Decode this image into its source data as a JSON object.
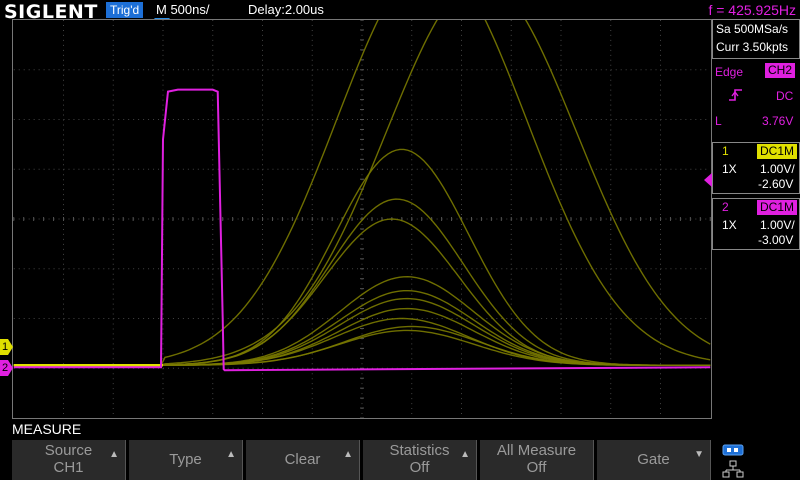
{
  "header": {
    "logo": "SIGLENT",
    "trig_status": "Trig'd",
    "timebase": "M 500ns/",
    "delay": "Delay:2.00us",
    "frequency": "f = 425.925Hz"
  },
  "acquisition": {
    "sample_rate": "Sa 500MSa/s",
    "memory": "Curr 3.50kpts"
  },
  "trigger": {
    "type": "Edge",
    "source": "CH2",
    "coupling": "DC",
    "level_label": "L",
    "level_value": "3.76V"
  },
  "channels": [
    {
      "num": "1",
      "coupling": "DC1M",
      "probe": "1X",
      "scale": "1.00V/",
      "offset": "-2.60V",
      "color": "#e0e000"
    },
    {
      "num": "2",
      "coupling": "DC1M",
      "probe": "1X",
      "scale": "1.00V/",
      "offset": "-3.00V",
      "color": "#e020e0"
    }
  ],
  "menu": {
    "title": "MEASURE",
    "softkeys": [
      {
        "line1": "Source",
        "line2": "CH1"
      },
      {
        "line1": "Type",
        "line2": ""
      },
      {
        "line1": "Clear",
        "line2": ""
      },
      {
        "line1": "Statistics",
        "line2": "Off"
      },
      {
        "line1": "All Measure",
        "line2": "Off"
      },
      {
        "line1": "Gate",
        "line2": ""
      }
    ]
  },
  "markers": {
    "ch1": "1",
    "ch2": "2"
  },
  "colors": {
    "ch1": "#c8c800",
    "ch2": "#e020e0",
    "trig_badge": "#1d6fd6"
  },
  "icons": {
    "trigger_position": "triangle-down-icon",
    "trigger_level": "triangle-left-icon",
    "rising_edge": "rising-edge-icon",
    "network": "network-icon",
    "usb": "usb-icon"
  }
}
